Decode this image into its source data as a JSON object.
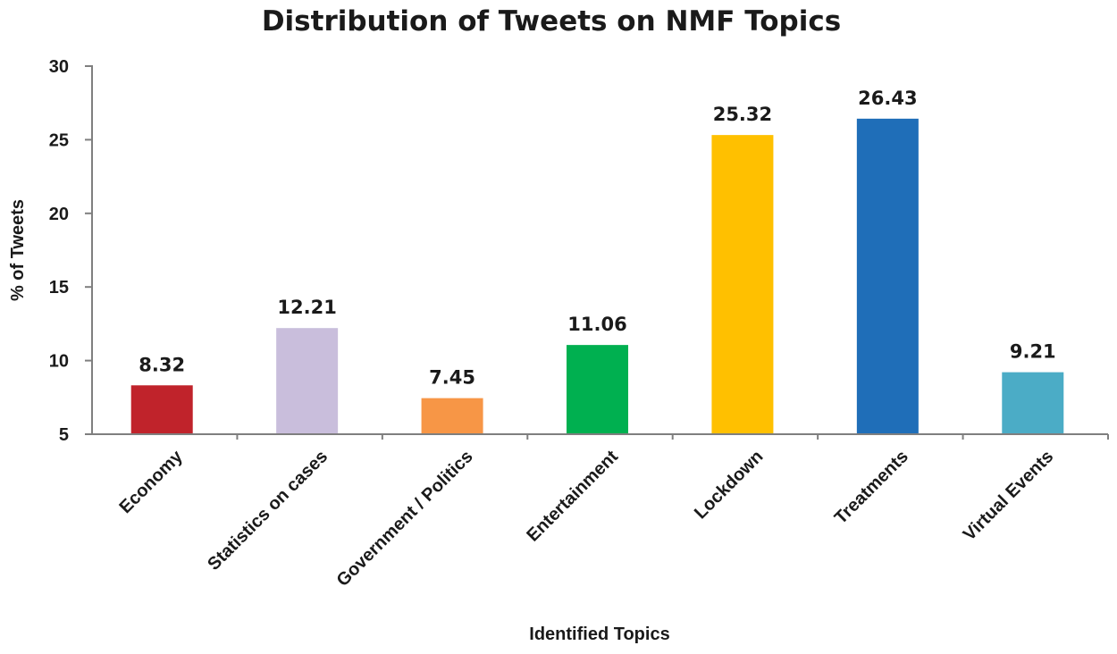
{
  "chart_data": {
    "type": "bar",
    "title": "Distribution of Tweets on NMF Topics",
    "xlabel": "Identified Topics",
    "ylabel": "% of Tweets",
    "ylim": [
      5,
      30
    ],
    "yticks": [
      5,
      10,
      15,
      20,
      25,
      30
    ],
    "ytick_labels": [
      "5",
      "10",
      "15",
      "20",
      "25",
      "30"
    ],
    "grid": false,
    "legend": "none",
    "categories": [
      "Economy",
      "Statistics on cases",
      "Government / Politics",
      "Entertainment",
      "Lockdown",
      "Treatments",
      "Virtual Events"
    ],
    "values": [
      8.32,
      12.21,
      7.45,
      11.06,
      25.32,
      26.43,
      9.21
    ],
    "value_labels": [
      "8.32",
      "12.21",
      "7.45",
      "11.06",
      "25.32",
      "26.43",
      "9.21"
    ],
    "colors": [
      "#C0232B",
      "#C9BEDC",
      "#F79646",
      "#00B050",
      "#FFC000",
      "#1F6EB8",
      "#4BACC6"
    ]
  }
}
